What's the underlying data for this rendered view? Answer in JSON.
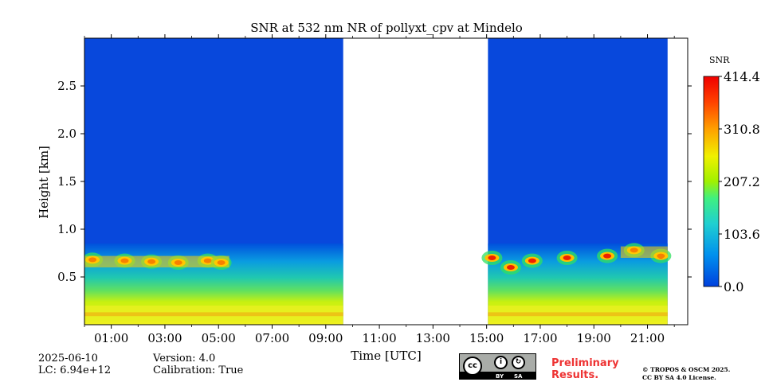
{
  "chart_data": {
    "type": "heatmap",
    "title": "SNR at 532 nm NR of pollyxt_cpv at Mindelo",
    "xlabel": "Time [UTC]",
    "ylabel": "Height [km]",
    "x_range_hours": [
      0.0,
      22.5
    ],
    "ylim": [
      0.0,
      3.0
    ],
    "x_ticks": [
      "01:00",
      "03:00",
      "05:00",
      "07:00",
      "09:00",
      "11:00",
      "13:00",
      "15:00",
      "17:00",
      "19:00",
      "21:00"
    ],
    "y_ticks": [
      "0.5",
      "1.0",
      "1.5",
      "2.0",
      "2.5"
    ],
    "y_tick_values": [
      0.5,
      1.0,
      1.5,
      2.0,
      2.5
    ],
    "data_segments_hours": [
      [
        0.0,
        9.65
      ],
      [
        15.05,
        21.75
      ]
    ],
    "colorbar": {
      "label": "SNR",
      "min": 0.0,
      "max": 414.4,
      "ticks": [
        "0.0",
        "103.6",
        "207.2",
        "310.8",
        "414.4"
      ],
      "tick_values": [
        0.0,
        103.6,
        207.2,
        310.8,
        414.4
      ],
      "colormap": "jet"
    },
    "features": {
      "near_surface_high_snr_band_km": [
        0.05,
        0.2
      ],
      "layer_peak_heights_km": [
        {
          "t": 0.3,
          "h": 0.68
        },
        {
          "t": 1.5,
          "h": 0.67
        },
        {
          "t": 2.5,
          "h": 0.66
        },
        {
          "t": 3.5,
          "h": 0.65
        },
        {
          "t": 4.6,
          "h": 0.67
        },
        {
          "t": 5.1,
          "h": 0.65
        },
        {
          "t": 15.2,
          "h": 0.7
        },
        {
          "t": 15.9,
          "h": 0.6
        },
        {
          "t": 16.7,
          "h": 0.67
        },
        {
          "t": 18.0,
          "h": 0.7
        },
        {
          "t": 19.5,
          "h": 0.72
        },
        {
          "t": 20.5,
          "h": 0.78
        },
        {
          "t": 21.5,
          "h": 0.72
        }
      ]
    }
  },
  "footer": {
    "date": "2025-06-10",
    "lc": "LC: 6.94e+12",
    "version": "Version: 4.0",
    "calibration": "Calibration: True",
    "preliminary_line1": "Preliminary",
    "preliminary_line2": "Results.",
    "copyright_line1": "© TROPOS & OSCM 2025.",
    "copyright_line2": "CC BY SA 4.0 License.",
    "cc_logo": {
      "mark": "cc",
      "by": "BY",
      "sa": "SA"
    }
  }
}
